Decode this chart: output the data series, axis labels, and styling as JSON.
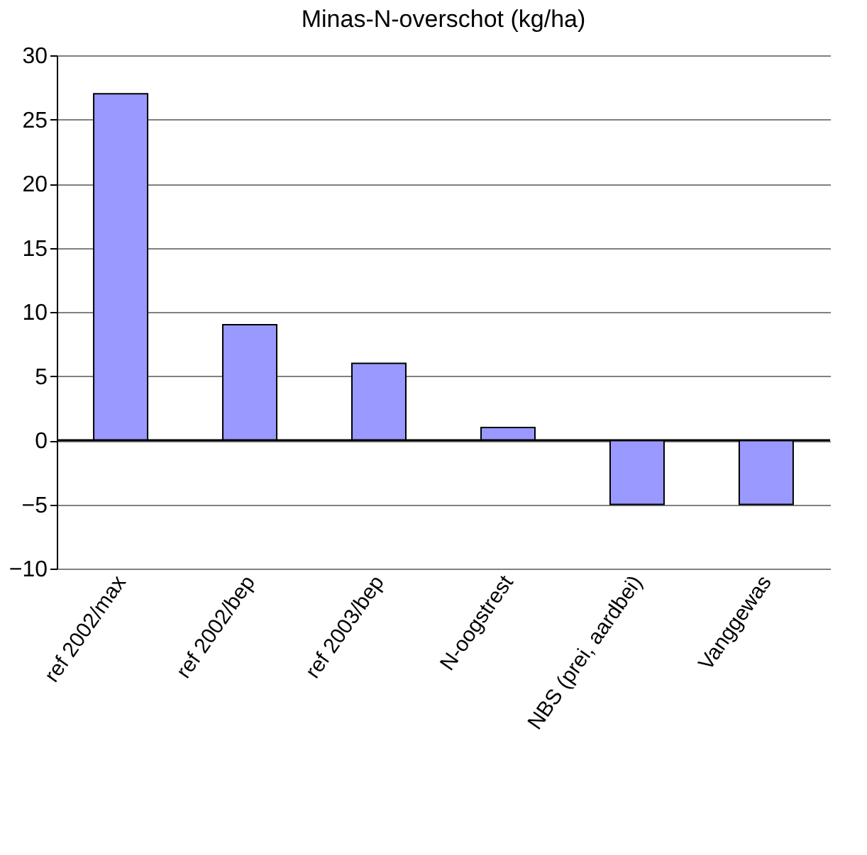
{
  "chart_data": {
    "type": "bar",
    "title": "Minas-N-overschot (kg/ha)",
    "categories": [
      "ref 2002/max",
      "ref 2002/bep",
      "ref 2003/bep",
      "N-oogstrest",
      "NBS (prei, aardbei)",
      "Vanggewas"
    ],
    "values": [
      27,
      9,
      6,
      1,
      -5,
      -5
    ],
    "color": "#9999ff",
    "ylim": [
      -10,
      30
    ],
    "yticks": [
      -10,
      -5,
      0,
      5,
      10,
      15,
      20,
      25,
      30
    ],
    "grid": "y"
  }
}
